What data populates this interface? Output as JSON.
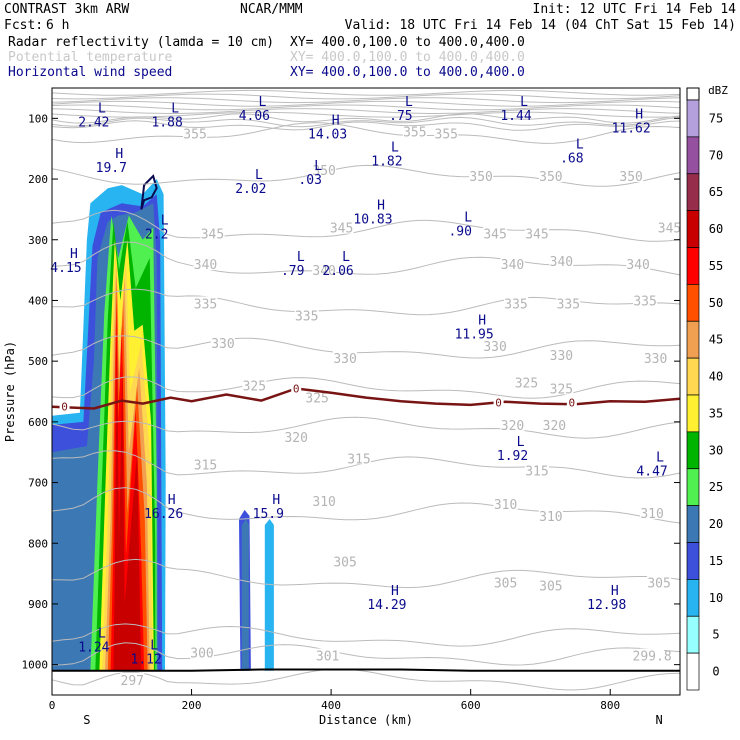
{
  "header": {
    "model": "CONTRAST  3km ARW",
    "org": "NCAR/MMM",
    "init": "Init: 12 UTC Fri 14 Feb 14",
    "fcst_label": "Fcst:",
    "fcst_value": "6 h",
    "valid": "Valid: 18 UTC Fri 14 Feb 14 (04 ChT Sat 15 Feb 14)",
    "fields": [
      {
        "name": "Radar reflectivity (lamda = 10 cm)",
        "xy": "XY= 400.0,100.0 to 400.0,400.0",
        "color": "#000000"
      },
      {
        "name": "Potential temperature",
        "xy": "XY= 400.0,100.0 to 400.0,400.0",
        "color": "#c8c8c8"
      },
      {
        "name": "Horizontal wind speed",
        "xy": "XY= 400.0,100.0 to 400.0,400.0",
        "color": "#0a0a8c"
      }
    ]
  },
  "chart_data": {
    "type": "heatmap",
    "title": "",
    "xlabel": "Distance (km)",
    "ylabel": "Pressure (hPa)",
    "xlim": [
      0,
      900
    ],
    "ylim": [
      1050,
      50
    ],
    "x_ticks": [
      "0",
      "200",
      "400",
      "600",
      "800"
    ],
    "x_tick_values": [
      0,
      200,
      400,
      600,
      800
    ],
    "y_ticks": [
      "100",
      "200",
      "300",
      "400",
      "500",
      "600",
      "700",
      "800",
      "900",
      "1000"
    ],
    "y_tick_values": [
      100,
      200,
      300,
      400,
      500,
      600,
      700,
      800,
      900,
      1000
    ],
    "end_labels": {
      "left": "S",
      "right": "N"
    },
    "colorbar": {
      "unit": "dBZ",
      "levels": [
        "75",
        "70",
        "65",
        "60",
        "55",
        "50",
        "45",
        "40",
        "35",
        "30",
        "25",
        "20",
        "15",
        "10",
        "5",
        "0"
      ],
      "colors": [
        "#b4a0dc",
        "#9650a0",
        "#962d4b",
        "#c80000",
        "#ff0000",
        "#ff5000",
        "#f0a050",
        "#ffd750",
        "#fff032",
        "#00b400",
        "#50f050",
        "#3c78b4",
        "#3c50dc",
        "#28b4f0",
        "#96ffff",
        "#ffffff"
      ]
    },
    "theta_labels": [
      {
        "label": "355",
        "x": 205,
        "p": 125
      },
      {
        "label": "355",
        "x": 520,
        "p": 122
      },
      {
        "label": "355",
        "x": 565,
        "p": 125
      },
      {
        "label": "350",
        "x": 390,
        "p": 185
      },
      {
        "label": "350",
        "x": 615,
        "p": 195
      },
      {
        "label": "350",
        "x": 715,
        "p": 195
      },
      {
        "label": "350",
        "x": 830,
        "p": 195
      },
      {
        "label": "345",
        "x": 230,
        "p": 290
      },
      {
        "label": "345",
        "x": 415,
        "p": 280
      },
      {
        "label": "345",
        "x": 635,
        "p": 290
      },
      {
        "label": "345",
        "x": 695,
        "p": 290
      },
      {
        "label": "345",
        "x": 885,
        "p": 280
      },
      {
        "label": "340",
        "x": 220,
        "p": 340
      },
      {
        "label": "340",
        "x": 390,
        "p": 350
      },
      {
        "label": "340",
        "x": 660,
        "p": 340
      },
      {
        "label": "340",
        "x": 730,
        "p": 335
      },
      {
        "label": "340",
        "x": 840,
        "p": 340
      },
      {
        "label": "335",
        "x": 220,
        "p": 405
      },
      {
        "label": "335",
        "x": 365,
        "p": 425
      },
      {
        "label": "335",
        "x": 665,
        "p": 405
      },
      {
        "label": "335",
        "x": 740,
        "p": 405
      },
      {
        "label": "335",
        "x": 850,
        "p": 400
      },
      {
        "label": "330",
        "x": 245,
        "p": 470
      },
      {
        "label": "330",
        "x": 420,
        "p": 495
      },
      {
        "label": "330",
        "x": 635,
        "p": 475
      },
      {
        "label": "330",
        "x": 730,
        "p": 490
      },
      {
        "label": "330",
        "x": 865,
        "p": 495
      },
      {
        "label": "325",
        "x": 290,
        "p": 540
      },
      {
        "label": "325",
        "x": 380,
        "p": 560
      },
      {
        "label": "325",
        "x": 680,
        "p": 535
      },
      {
        "label": "325",
        "x": 730,
        "p": 545
      },
      {
        "label": "320",
        "x": 350,
        "p": 625
      },
      {
        "label": "320",
        "x": 660,
        "p": 605
      },
      {
        "label": "320",
        "x": 720,
        "p": 605
      },
      {
        "label": "315",
        "x": 220,
        "p": 670
      },
      {
        "label": "315",
        "x": 440,
        "p": 660
      },
      {
        "label": "315",
        "x": 695,
        "p": 680
      },
      {
        "label": "310",
        "x": 390,
        "p": 730
      },
      {
        "label": "310",
        "x": 650,
        "p": 735
      },
      {
        "label": "310",
        "x": 715,
        "p": 755
      },
      {
        "label": "310",
        "x": 860,
        "p": 750
      },
      {
        "label": "305",
        "x": 420,
        "p": 830
      },
      {
        "label": "305",
        "x": 650,
        "p": 865
      },
      {
        "label": "305",
        "x": 715,
        "p": 870
      },
      {
        "label": "305",
        "x": 870,
        "p": 865
      },
      {
        "label": "300",
        "x": 215,
        "p": 980
      },
      {
        "label": "297",
        "x": 115,
        "p": 1025
      },
      {
        "label": "301",
        "x": 395,
        "p": 985
      },
      {
        "label": "299.8",
        "x": 860,
        "p": 985
      }
    ],
    "wind_extrema": [
      {
        "type": "L",
        "value": "2.42",
        "x": 60,
        "p": 90
      },
      {
        "type": "L",
        "value": "1.88",
        "x": 165,
        "p": 90
      },
      {
        "type": "L",
        "value": "4.06",
        "x": 290,
        "p": 80
      },
      {
        "type": "H",
        "value": "14.03",
        "x": 395,
        "p": 110
      },
      {
        "type": "L",
        "value": ".75",
        "x": 500,
        "p": 80
      },
      {
        "type": "L",
        "value": "1.44",
        "x": 665,
        "p": 80
      },
      {
        "type": "H",
        "value": "11.62",
        "x": 830,
        "p": 100
      },
      {
        "type": "L",
        "value": "1.82",
        "x": 480,
        "p": 155
      },
      {
        "type": "L",
        "value": ".68",
        "x": 745,
        "p": 150
      },
      {
        "type": "H",
        "value": "19.7",
        "x": 85,
        "p": 165
      },
      {
        "type": "L",
        "value": ".03",
        "x": 370,
        "p": 185
      },
      {
        "type": "L",
        "value": "2.02",
        "x": 285,
        "p": 200
      },
      {
        "type": "H",
        "value": "10.83",
        "x": 460,
        "p": 250
      },
      {
        "type": "L",
        "value": ".90",
        "x": 585,
        "p": 270
      },
      {
        "type": "L",
        "value": "2.2",
        "x": 150,
        "p": 275
      },
      {
        "type": "H",
        "value": "4.15",
        "x": 20,
        "p": 330
      },
      {
        "type": "L",
        "value": ".79",
        "x": 345,
        "p": 335
      },
      {
        "type": "L",
        "value": "2.06",
        "x": 410,
        "p": 335
      },
      {
        "type": "H",
        "value": "11.95",
        "x": 605,
        "p": 440
      },
      {
        "type": "L",
        "value": "1.92",
        "x": 660,
        "p": 640
      },
      {
        "type": "L",
        "value": "4.47",
        "x": 860,
        "p": 665
      },
      {
        "type": "H",
        "value": "16.26",
        "x": 160,
        "p": 735
      },
      {
        "type": "H",
        "value": "15.9",
        "x": 310,
        "p": 735
      },
      {
        "type": "H",
        "value": "14.29",
        "x": 480,
        "p": 885
      },
      {
        "type": "H",
        "value": "12.98",
        "x": 795,
        "p": 885
      },
      {
        "type": "L",
        "value": "1.24",
        "x": 60,
        "p": 955
      },
      {
        "type": "L",
        "value": "1.12",
        "x": 135,
        "p": 975
      }
    ],
    "freezing_level": {
      "label": "0",
      "x": [
        0,
        60,
        100,
        130,
        170,
        200,
        250,
        300,
        350,
        400,
        450,
        500,
        550,
        600,
        650,
        700,
        750,
        800,
        850,
        900
      ],
      "p": [
        575,
        578,
        565,
        570,
        560,
        566,
        555,
        565,
        545,
        552,
        560,
        566,
        570,
        572,
        567,
        570,
        571,
        566,
        567,
        562
      ],
      "label_positions": [
        {
          "label": "0",
          "x": 18,
          "p": 575
        },
        {
          "label": "0",
          "x": 350,
          "p": 545
        },
        {
          "label": "0",
          "x": 640,
          "p": 568
        },
        {
          "label": "0",
          "x": 745,
          "p": 568
        }
      ]
    },
    "terrain": {
      "x": [
        0,
        100,
        200,
        300,
        400,
        500,
        600,
        700,
        800,
        900
      ],
      "p": [
        1010,
        1010,
        1010,
        1008,
        1008,
        1008,
        1010,
        1010,
        1010,
        1010
      ]
    }
  }
}
